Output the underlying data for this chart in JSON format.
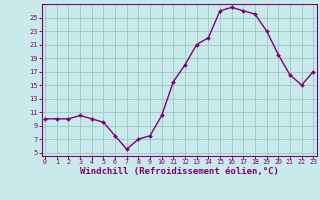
{
  "x": [
    0,
    1,
    2,
    3,
    4,
    5,
    6,
    7,
    8,
    9,
    10,
    11,
    12,
    13,
    14,
    15,
    16,
    17,
    18,
    19,
    20,
    21,
    22,
    23
  ],
  "y": [
    10,
    10,
    10,
    10.5,
    10,
    9.5,
    7.5,
    5.5,
    7,
    7.5,
    10.5,
    15.5,
    18,
    21,
    22,
    26,
    26.5,
    26,
    25.5,
    23,
    19.5,
    16.5,
    15,
    17
  ],
  "line_color": "#800080",
  "marker_color": "#800080",
  "bg_color": "#c8eaea",
  "grid_color": "#a0cccc",
  "axis_color": "#800080",
  "tick_color": "#800080",
  "xlabel": "Windchill (Refroidissement éolien,°C)",
  "xlabel_fontsize": 6.5,
  "yticks": [
    5,
    7,
    9,
    11,
    13,
    15,
    17,
    19,
    21,
    23,
    25
  ],
  "xticks": [
    0,
    1,
    2,
    3,
    4,
    5,
    6,
    7,
    8,
    9,
    10,
    11,
    12,
    13,
    14,
    15,
    16,
    17,
    18,
    19,
    20,
    21,
    22,
    23
  ],
  "ylim": [
    4.5,
    27.0
  ],
  "xlim": [
    -0.3,
    23.3
  ]
}
